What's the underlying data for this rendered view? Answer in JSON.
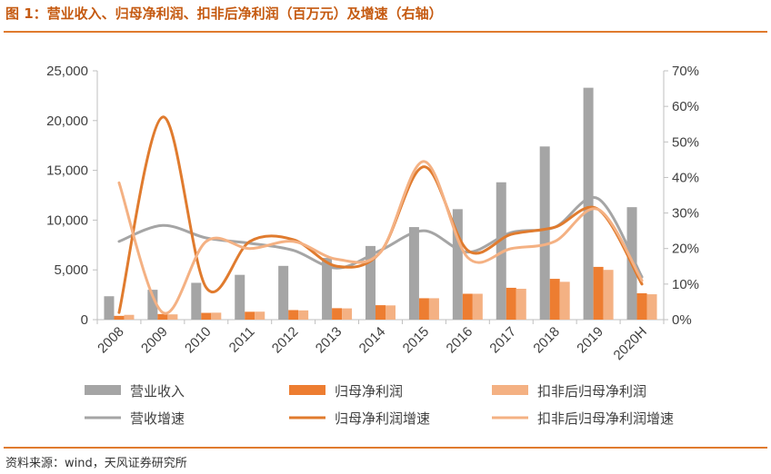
{
  "title": "图 1：营业收入、归母净利润、扣非后净利润（百万元）及增速（右轴）",
  "source": "资料来源：wind，天风证券研究所",
  "colors": {
    "revenue": "#a5a5a5",
    "net_profit": "#ed7d31",
    "deducted_net_profit": "#f4b183",
    "revenue_growth": "#a5a5a5",
    "net_profit_growth": "#e07b2e",
    "deducted_growth": "#f4b183",
    "title": "#c55a11",
    "rule": "#e07b2e"
  },
  "chart_data": {
    "type": "bar",
    "title": "",
    "categories": [
      "2008",
      "2009",
      "2010",
      "2011",
      "2012",
      "2013",
      "2014",
      "2015",
      "2016",
      "2017",
      "2018",
      "2019",
      "2020H"
    ],
    "y_left": {
      "ylim": [
        0,
        25000
      ],
      "ticks": [
        0,
        5000,
        10000,
        15000,
        20000,
        25000
      ],
      "tick_labels": [
        "0",
        "5,000",
        "10,000",
        "15,000",
        "20,000",
        "25,000"
      ]
    },
    "y_right": {
      "ylim": [
        0,
        0.7
      ],
      "ticks": [
        0,
        0.1,
        0.2,
        0.3,
        0.4,
        0.5,
        0.6,
        0.7
      ],
      "tick_labels": [
        "0%",
        "10%",
        "20%",
        "30%",
        "40%",
        "50%",
        "60%",
        "70%"
      ]
    },
    "grid": false,
    "legend_position": "bottom",
    "bar_series": [
      {
        "name": "营业收入",
        "values": [
          2350,
          3000,
          3700,
          4500,
          5400,
          6200,
          7400,
          9300,
          11100,
          13800,
          17400,
          23300,
          11300
        ]
      },
      {
        "name": "归母净利润",
        "values": [
          380,
          560,
          680,
          790,
          960,
          1150,
          1450,
          2150,
          2600,
          3200,
          4100,
          5300,
          2650
        ]
      },
      {
        "name": "扣非后归母净利润",
        "values": [
          480,
          530,
          700,
          800,
          930,
          1130,
          1430,
          2150,
          2600,
          3100,
          3800,
          5000,
          2550
        ]
      }
    ],
    "line_series": [
      {
        "name": "营收增速",
        "axis": "right",
        "values": [
          0.22,
          0.265,
          0.23,
          0.215,
          0.195,
          0.145,
          0.195,
          0.25,
          0.19,
          0.245,
          0.26,
          0.34,
          0.12
        ]
      },
      {
        "name": "归母净利润增速",
        "axis": "right",
        "values": [
          0.02,
          0.57,
          0.09,
          0.22,
          0.225,
          0.15,
          0.19,
          0.43,
          0.195,
          0.24,
          0.26,
          0.31,
          0.1
        ]
      },
      {
        "name": "扣非后归母净利润增速",
        "axis": "right",
        "values": [
          0.385,
          0.02,
          0.22,
          0.2,
          0.22,
          0.17,
          0.19,
          0.445,
          0.175,
          0.2,
          0.22,
          0.31,
          0.11
        ]
      }
    ]
  }
}
